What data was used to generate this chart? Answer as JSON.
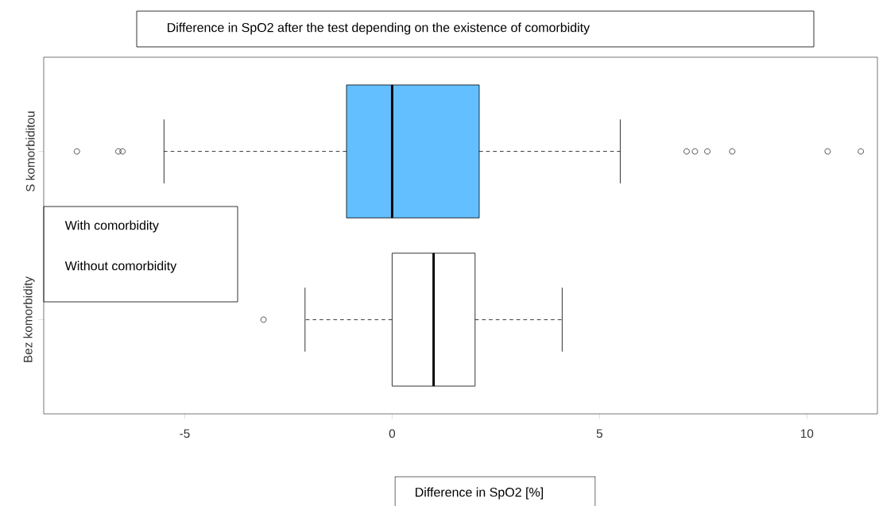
{
  "chart_data": {
    "type": "box",
    "orientation": "horizontal",
    "title": "Difference in SpO2 after the test depending on the existence of comorbidity",
    "xlabel": "Difference in SpO2 [%]",
    "annotations": [
      "With comorbidity",
      "Without comorbidity"
    ],
    "categories": [
      "S komorbiditou",
      "Bez komorbidity"
    ],
    "colors": [
      "#63bfff",
      "#ffffff"
    ],
    "boxes": [
      {
        "low": -5.5,
        "q1": -1.1,
        "median": 0,
        "q3": 2.1,
        "high": 5.5,
        "outliers": [
          -7.6,
          -6.6,
          -6.5,
          7.1,
          7.3,
          7.6,
          8.2,
          10.5,
          11.3
        ]
      },
      {
        "low": -2.1,
        "q1": 0,
        "median": 1,
        "q3": 2,
        "high": 4.1,
        "outliers": [
          -3.1
        ]
      }
    ],
    "xlim": [
      -8.4,
      11.7
    ],
    "xticks": [
      -5,
      0,
      5,
      10
    ]
  }
}
